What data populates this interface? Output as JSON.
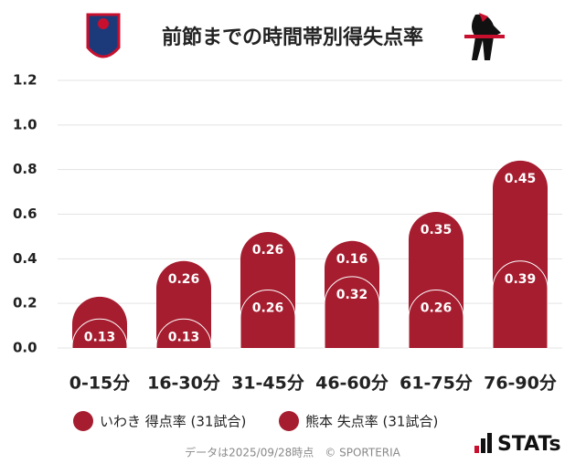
{
  "chart_data": {
    "type": "bar",
    "stacked": true,
    "title": "前節までの時間帯別得失点率",
    "categories": [
      "0-15分",
      "16-30分",
      "31-45分",
      "46-60分",
      "61-75分",
      "76-90分"
    ],
    "series": [
      {
        "name": "いわき 得点率 (31試合)",
        "color": "#a51d2f",
        "values": [
          0.13,
          0.13,
          0.26,
          0.32,
          0.26,
          0.39
        ]
      },
      {
        "name": "熊本 失点率 (31試合)",
        "color": "#a51d2f",
        "values": [
          0.1,
          0.26,
          0.26,
          0.16,
          0.35,
          0.45
        ],
        "value_labels": [
          null,
          "0.26",
          "0.26",
          "0.16",
          "0.35",
          "0.45"
        ]
      }
    ],
    "ylim": [
      0,
      1.2
    ],
    "yticks": [
      {
        "value": 0,
        "label": "0.0"
      },
      0.2,
      0.4,
      0.6,
      0.8,
      {
        "value": 1,
        "label": "1.0"
      },
      1.2
    ],
    "grid": true
  },
  "footer": {
    "note": "データは2025/09/28時点　© SPORTERIA",
    "brand": "STATs"
  }
}
